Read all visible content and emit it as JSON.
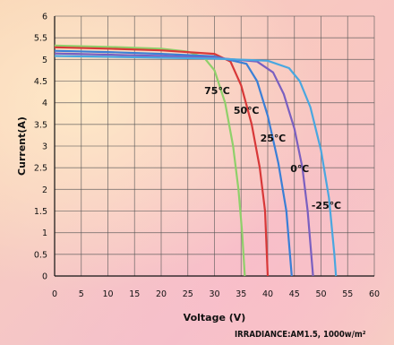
{
  "chart_data": {
    "type": "line",
    "title": "",
    "xlabel": "Voltage (V)",
    "ylabel": "Current(A)",
    "xlim": [
      0,
      60
    ],
    "ylim": [
      0,
      6
    ],
    "xticks": [
      "0",
      "5",
      "10",
      "15",
      "20",
      "25",
      "30",
      "35",
      "40",
      "45",
      "50",
      "55",
      "60"
    ],
    "yticks": [
      "0",
      "0.5",
      "1",
      "1.5",
      "2",
      "2.5",
      "3",
      "3.5",
      "4",
      "4.5",
      "5",
      "5.5",
      "6"
    ],
    "grid": true,
    "note": "IRRADIANCE:AM1.5, 1000w/m²",
    "series": [
      {
        "name": "75℃",
        "color": "#8fd06a",
        "points": [
          [
            0,
            5.32
          ],
          [
            10,
            5.29
          ],
          [
            20,
            5.25
          ],
          [
            25,
            5.18
          ],
          [
            28,
            5.05
          ],
          [
            30,
            4.75
          ],
          [
            32,
            4.0
          ],
          [
            33.5,
            3.0
          ],
          [
            34.5,
            2.0
          ],
          [
            35.2,
            1.0
          ],
          [
            35.7,
            0
          ]
        ]
      },
      {
        "name": "50℃",
        "color": "#d83838",
        "points": [
          [
            0,
            5.28
          ],
          [
            10,
            5.25
          ],
          [
            20,
            5.21
          ],
          [
            30,
            5.13
          ],
          [
            33,
            4.95
          ],
          [
            35,
            4.4
          ],
          [
            37,
            3.5
          ],
          [
            38.5,
            2.5
          ],
          [
            39.5,
            1.5
          ],
          [
            40,
            0
          ]
        ]
      },
      {
        "name": "25℃",
        "color": "#3a7fd6",
        "points": [
          [
            0,
            5.2
          ],
          [
            10,
            5.17
          ],
          [
            20,
            5.13
          ],
          [
            30,
            5.07
          ],
          [
            36,
            4.9
          ],
          [
            38,
            4.5
          ],
          [
            40,
            3.7
          ],
          [
            42,
            2.6
          ],
          [
            43.5,
            1.5
          ],
          [
            44.5,
            0
          ]
        ]
      },
      {
        "name": "0℃",
        "color": "#7a5fc0",
        "points": [
          [
            0,
            5.14
          ],
          [
            10,
            5.11
          ],
          [
            20,
            5.08
          ],
          [
            30,
            5.04
          ],
          [
            38,
            4.95
          ],
          [
            41,
            4.7
          ],
          [
            43,
            4.2
          ],
          [
            45,
            3.4
          ],
          [
            46.5,
            2.5
          ],
          [
            47.5,
            1.5
          ],
          [
            48.5,
            0
          ]
        ]
      },
      {
        "name": "-25℃",
        "color": "#49a7e0",
        "points": [
          [
            0,
            5.08
          ],
          [
            10,
            5.06
          ],
          [
            20,
            5.04
          ],
          [
            30,
            5.02
          ],
          [
            40,
            4.97
          ],
          [
            44,
            4.8
          ],
          [
            46,
            4.5
          ],
          [
            48,
            3.9
          ],
          [
            50,
            2.9
          ],
          [
            51.5,
            1.8
          ],
          [
            52.5,
            0.5
          ],
          [
            52.8,
            0
          ]
        ]
      }
    ],
    "labels": [
      {
        "text": "75℃",
        "x": 30.5,
        "y": 4.2
      },
      {
        "text": "50℃",
        "x": 36,
        "y": 3.75
      },
      {
        "text": "25℃",
        "x": 41,
        "y": 3.1
      },
      {
        "text": "0℃",
        "x": 46,
        "y": 2.4
      },
      {
        "text": "-25℃",
        "x": 51,
        "y": 1.55
      }
    ]
  }
}
